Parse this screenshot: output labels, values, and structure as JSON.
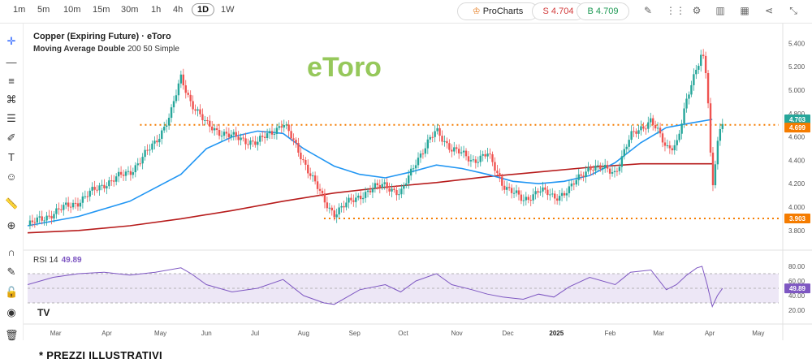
{
  "toolbar": {
    "timeframes": [
      "1m",
      "5m",
      "10m",
      "15m",
      "30m",
      "1h",
      "4h",
      "1D",
      "1W"
    ],
    "active_timeframe": "1D",
    "prochart_label": "ProCharts",
    "sell_label": "S 4.704",
    "buy_label": "B 4.709",
    "icons": [
      "pencil-icon",
      "indicators-icon",
      "settings-icon",
      "bar-chart-icon",
      "calendar-icon",
      "share-icon",
      "collapse-icon"
    ]
  },
  "sidebar": {
    "icons": [
      "crosshair-icon",
      "horizontal-line-icon",
      "parallel-lines-icon",
      "pattern-icon",
      "fib-icon",
      "brush-icon",
      "text-icon",
      "emoji-icon",
      "ruler-icon",
      "zoom-icon",
      "magnet-icon",
      "lock-draw-icon",
      "lock-icon",
      "eye-icon",
      "trash-icon"
    ]
  },
  "chart": {
    "title": "Copper (Expiring Future) · eToro",
    "subtitle_name": "Moving Average Double",
    "subtitle_params": "200 50 Simple",
    "watermark": "eToro",
    "rsi_name": "RSI 14",
    "rsi_value": "49.89",
    "footer_note": "* PREZZI ILLUSTRATIVI",
    "tv_logo": "TV"
  },
  "colors": {
    "up": "#26a69a",
    "down": "#ef5350",
    "ma_fast": "#2196f3",
    "ma_slow": "#b71c1c",
    "level": "#f57c00",
    "rsi": "#7e57c2",
    "rsi_band": "#ede7f6",
    "watermark": "#8bc34a"
  },
  "chart_data": {
    "type": "candlestick",
    "symbol": "Copper (Expiring Future)",
    "price_axis": {
      "ticks": [
        3.8,
        4.0,
        4.2,
        4.4,
        4.6,
        4.8,
        5.0,
        5.2,
        5.4
      ],
      "tick_labels": [
        "3.800",
        "4.000",
        "4.200",
        "4.400",
        "4.600",
        "4.800",
        "5.000",
        "5.200",
        "5.400"
      ],
      "range": [
        3.75,
        5.5
      ]
    },
    "time_axis": {
      "labels": [
        "Mar",
        "Apr",
        "May",
        "Jun",
        "Jul",
        "Aug",
        "Sep",
        "Oct",
        "Nov",
        "Dec",
        "2025",
        "Feb",
        "Mar",
        "Apr",
        "May"
      ]
    },
    "price_labels": [
      {
        "value": "4.703",
        "color": "#26a69a"
      },
      {
        "value": "4.699",
        "color": "#f57c00"
      },
      {
        "value": "3.903",
        "color": "#f57c00"
      }
    ],
    "levels": [
      4.703,
      3.903
    ],
    "ma_slow_path": [
      [
        0,
        3.78
      ],
      [
        1,
        3.8
      ],
      [
        2,
        3.84
      ],
      [
        3,
        3.9
      ],
      [
        4,
        3.97
      ],
      [
        5,
        4.05
      ],
      [
        6,
        4.12
      ],
      [
        7,
        4.17
      ],
      [
        8,
        4.21
      ],
      [
        9,
        4.26
      ],
      [
        10,
        4.3
      ],
      [
        11,
        4.34
      ],
      [
        12,
        4.37
      ],
      [
        13,
        4.37
      ],
      [
        13.4,
        4.37
      ]
    ],
    "ma_fast_path": [
      [
        0,
        3.84
      ],
      [
        1,
        3.92
      ],
      [
        2,
        4.05
      ],
      [
        3,
        4.28
      ],
      [
        3.5,
        4.5
      ],
      [
        4,
        4.6
      ],
      [
        4.5,
        4.65
      ],
      [
        5,
        4.63
      ],
      [
        5.4,
        4.5
      ],
      [
        6,
        4.35
      ],
      [
        6.5,
        4.28
      ],
      [
        7,
        4.25
      ],
      [
        7.5,
        4.3
      ],
      [
        8,
        4.36
      ],
      [
        8.5,
        4.33
      ],
      [
        9,
        4.28
      ],
      [
        9.5,
        4.22
      ],
      [
        10,
        4.2
      ],
      [
        10.5,
        4.22
      ],
      [
        11,
        4.27
      ],
      [
        11.5,
        4.38
      ],
      [
        12,
        4.55
      ],
      [
        12.5,
        4.68
      ],
      [
        13,
        4.72
      ],
      [
        13.4,
        4.75
      ]
    ],
    "price_path": [
      [
        0,
        3.84
      ],
      [
        0.5,
        3.95
      ],
      [
        1,
        4.05
      ],
      [
        1.5,
        4.2
      ],
      [
        2,
        4.3
      ],
      [
        2.5,
        4.55
      ],
      [
        2.8,
        4.8
      ],
      [
        3,
        5.1
      ],
      [
        3.2,
        4.9
      ],
      [
        3.5,
        4.7
      ],
      [
        4,
        4.6
      ],
      [
        4.5,
        4.55
      ],
      [
        5,
        4.72
      ],
      [
        5.4,
        4.4
      ],
      [
        5.8,
        4.05
      ],
      [
        6,
        3.95
      ],
      [
        6.5,
        4.1
      ],
      [
        7,
        4.2
      ],
      [
        7.3,
        4.1
      ],
      [
        7.6,
        4.4
      ],
      [
        8,
        4.65
      ],
      [
        8.3,
        4.5
      ],
      [
        8.7,
        4.4
      ],
      [
        9,
        4.45
      ],
      [
        9.3,
        4.2
      ],
      [
        9.7,
        4.05
      ],
      [
        10,
        4.15
      ],
      [
        10.3,
        4.08
      ],
      [
        10.6,
        4.15
      ],
      [
        11,
        4.35
      ],
      [
        11.5,
        4.3
      ],
      [
        11.8,
        4.6
      ],
      [
        12.2,
        4.75
      ],
      [
        12.5,
        4.5
      ],
      [
        12.7,
        4.55
      ],
      [
        12.9,
        4.9
      ],
      [
        13.1,
        5.2
      ],
      [
        13.2,
        5.35
      ],
      [
        13.3,
        5.1
      ],
      [
        13.4,
        4.1
      ],
      [
        13.5,
        4.55
      ],
      [
        13.6,
        4.7
      ]
    ],
    "rsi": {
      "ticks": [
        20,
        40,
        60,
        80
      ],
      "band": [
        30,
        70
      ],
      "mid": 50,
      "current": 49.89,
      "path": [
        [
          0,
          55
        ],
        [
          0.5,
          65
        ],
        [
          1,
          70
        ],
        [
          1.5,
          72
        ],
        [
          2,
          68
        ],
        [
          2.5,
          72
        ],
        [
          3,
          78
        ],
        [
          3.2,
          70
        ],
        [
          3.5,
          55
        ],
        [
          4,
          45
        ],
        [
          4.5,
          50
        ],
        [
          5,
          62
        ],
        [
          5.4,
          40
        ],
        [
          5.8,
          30
        ],
        [
          6,
          28
        ],
        [
          6.5,
          48
        ],
        [
          7,
          55
        ],
        [
          7.3,
          45
        ],
        [
          7.6,
          60
        ],
        [
          8,
          70
        ],
        [
          8.3,
          55
        ],
        [
          8.7,
          48
        ],
        [
          9,
          42
        ],
        [
          9.3,
          38
        ],
        [
          9.7,
          35
        ],
        [
          10,
          42
        ],
        [
          10.3,
          38
        ],
        [
          10.6,
          52
        ],
        [
          11,
          65
        ],
        [
          11.5,
          55
        ],
        [
          11.8,
          72
        ],
        [
          12.2,
          75
        ],
        [
          12.5,
          48
        ],
        [
          12.7,
          55
        ],
        [
          12.9,
          68
        ],
        [
          13.1,
          78
        ],
        [
          13.2,
          80
        ],
        [
          13.3,
          55
        ],
        [
          13.4,
          25
        ],
        [
          13.5,
          40
        ],
        [
          13.6,
          49.89
        ]
      ]
    }
  }
}
